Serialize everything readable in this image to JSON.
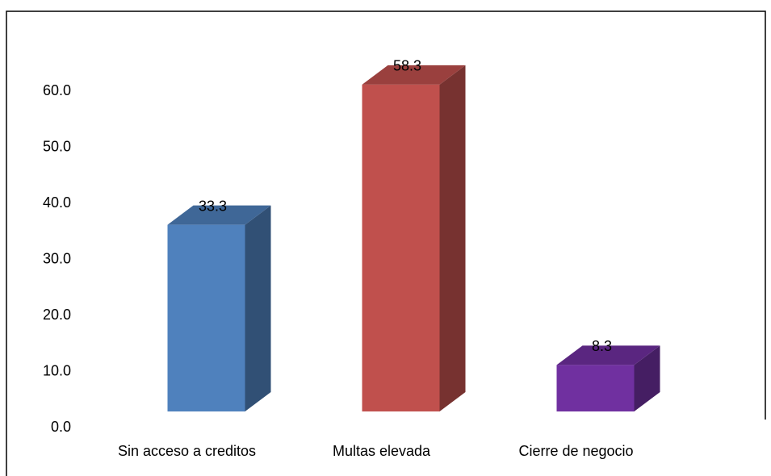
{
  "chart_data": {
    "type": "bar3d",
    "categories": [
      "Sin acceso a creditos",
      "Multas elevada",
      "Cierre de negocio"
    ],
    "values": [
      33.3,
      58.3,
      8.3
    ],
    "colors": [
      "#4f81bd",
      "#c0504d",
      "#7030a0"
    ],
    "ylim": [
      0,
      60
    ],
    "yticks": [
      {
        "value": 0,
        "label": "0.0"
      },
      {
        "value": 10,
        "label": "10.0"
      },
      {
        "value": 20,
        "label": "20.0"
      },
      {
        "value": 30,
        "label": "30.0"
      },
      {
        "value": 40,
        "label": "40.0"
      },
      {
        "value": 50,
        "label": "50.0"
      },
      {
        "value": 60,
        "label": "60.0"
      }
    ],
    "grid": false
  }
}
